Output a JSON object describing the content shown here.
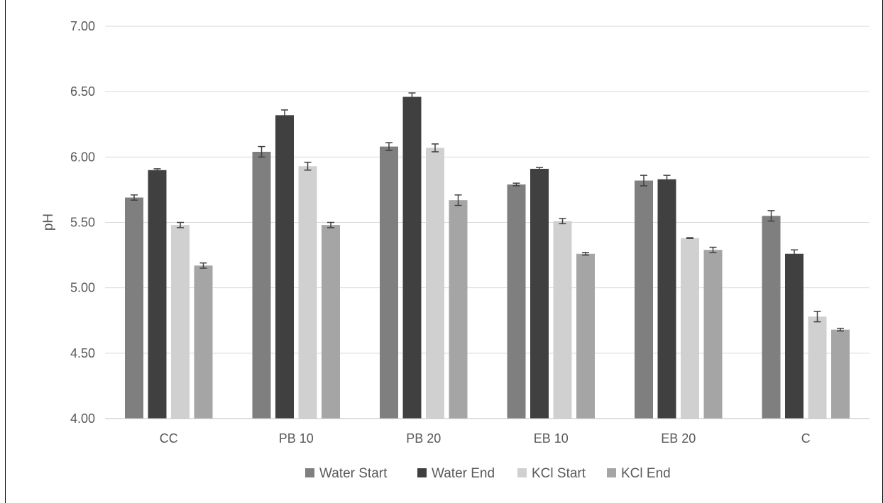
{
  "chart_data": {
    "type": "bar",
    "title": "",
    "xlabel": "",
    "ylabel": "pH",
    "ylim": [
      4.0,
      7.0
    ],
    "yticks": [
      "4.00",
      "4.50",
      "5.00",
      "5.50",
      "6.00",
      "6.50",
      "7.00"
    ],
    "grid": true,
    "legend_position": "bottom",
    "categories": [
      "CC",
      "PB 10",
      "PB 20",
      "EB 10",
      "EB 20",
      "C"
    ],
    "series": [
      {
        "name": "Water Start",
        "color": "#7f7f7f",
        "values": [
          5.69,
          6.04,
          6.08,
          5.79,
          5.82,
          5.55
        ],
        "errors": [
          0.02,
          0.04,
          0.03,
          0.01,
          0.04,
          0.04
        ]
      },
      {
        "name": "Water End",
        "color": "#404040",
        "values": [
          5.9,
          6.32,
          6.46,
          5.91,
          5.83,
          5.26
        ],
        "errors": [
          0.01,
          0.04,
          0.03,
          0.01,
          0.03,
          0.03
        ]
      },
      {
        "name": "KCl Start",
        "color": "#d0d0d0",
        "values": [
          5.48,
          5.93,
          6.07,
          5.51,
          5.38,
          4.78
        ],
        "errors": [
          0.02,
          0.03,
          0.03,
          0.02,
          0.003,
          0.04
        ]
      },
      {
        "name": "KCl End",
        "color": "#a5a5a5",
        "values": [
          5.17,
          5.48,
          5.67,
          5.26,
          5.29,
          4.68
        ],
        "errors": [
          0.02,
          0.02,
          0.04,
          0.01,
          0.02,
          0.01
        ]
      }
    ]
  }
}
